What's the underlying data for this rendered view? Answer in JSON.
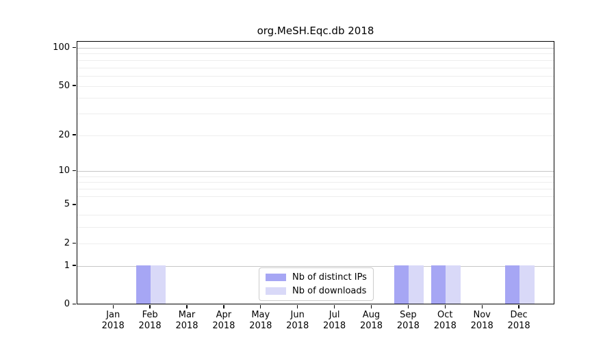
{
  "title": "org.MeSH.Eqc.db 2018",
  "chart_data": {
    "type": "bar",
    "title": "org.MeSH.Eqc.db 2018",
    "xlabel": "",
    "ylabel": "",
    "year_label": "2018",
    "categories": [
      "Jan",
      "Feb",
      "Mar",
      "Apr",
      "May",
      "Jun",
      "Jul",
      "Aug",
      "Sep",
      "Oct",
      "Nov",
      "Dec"
    ],
    "series": [
      {
        "name": "Nb of distinct IPs",
        "color": "#a6a6f4",
        "values": [
          0,
          1,
          0,
          0,
          0,
          0,
          0,
          0,
          1,
          1,
          0,
          1
        ]
      },
      {
        "name": "Nb of downloads",
        "color": "#d9d9f8",
        "values": [
          0,
          1,
          0,
          0,
          0,
          0,
          0,
          0,
          1,
          1,
          0,
          1
        ]
      }
    ],
    "yscale": "log1p",
    "y_axis_ticks": [
      0,
      1,
      2,
      5,
      10,
      20,
      50,
      100
    ],
    "y_major_gridlines": [
      1,
      10,
      100
    ],
    "y_minor_gridlines": [
      2,
      3,
      4,
      6,
      7,
      8,
      9,
      20,
      30,
      40,
      50,
      60,
      70,
      80,
      90
    ],
    "ylim": [
      0,
      113
    ],
    "grid": "horizontal",
    "legend_position": "bottom-center"
  },
  "legend": {
    "items": [
      {
        "label": "Nb of distinct IPs",
        "color": "#a6a6f4"
      },
      {
        "label": "Nb of downloads",
        "color": "#d9d9f8"
      }
    ]
  },
  "colors": {
    "background": "#ffffff",
    "frame": "#000000",
    "grid_major": "#c6c6c6",
    "grid_minor": "#ededed",
    "legend_border": "#cccccc",
    "bar_distinct_ips": "#a6a6f4",
    "bar_downloads": "#d9d9f8"
  }
}
